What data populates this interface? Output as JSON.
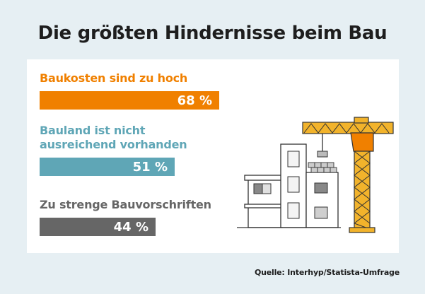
{
  "title": "Die größten Hindernisse beim Bau",
  "source": "Quelle: Interhyp/Statista-Umfrage",
  "colors": {
    "background": "#e6eff3",
    "panel": "#ffffff",
    "bar1": "#f08000",
    "bar2": "#5fa6b6",
    "bar3": "#666666",
    "crane": "#f2b32b",
    "crane_cab": "#f08000"
  },
  "chart_data": {
    "type": "bar",
    "orientation": "horizontal",
    "unit": "%",
    "xlim": [
      0,
      100
    ],
    "categories": [
      [
        "Baukosten sind zu hoch"
      ],
      [
        "Bauland ist nicht",
        "ausreichend vorhanden"
      ],
      [
        "Zu strenge Bauvorschriften"
      ]
    ],
    "values": [
      68,
      51,
      44
    ],
    "value_labels": [
      "68 %",
      "51 %",
      "44 %"
    ],
    "colors": [
      "#f08000",
      "#5fa6b6",
      "#666666"
    ]
  }
}
